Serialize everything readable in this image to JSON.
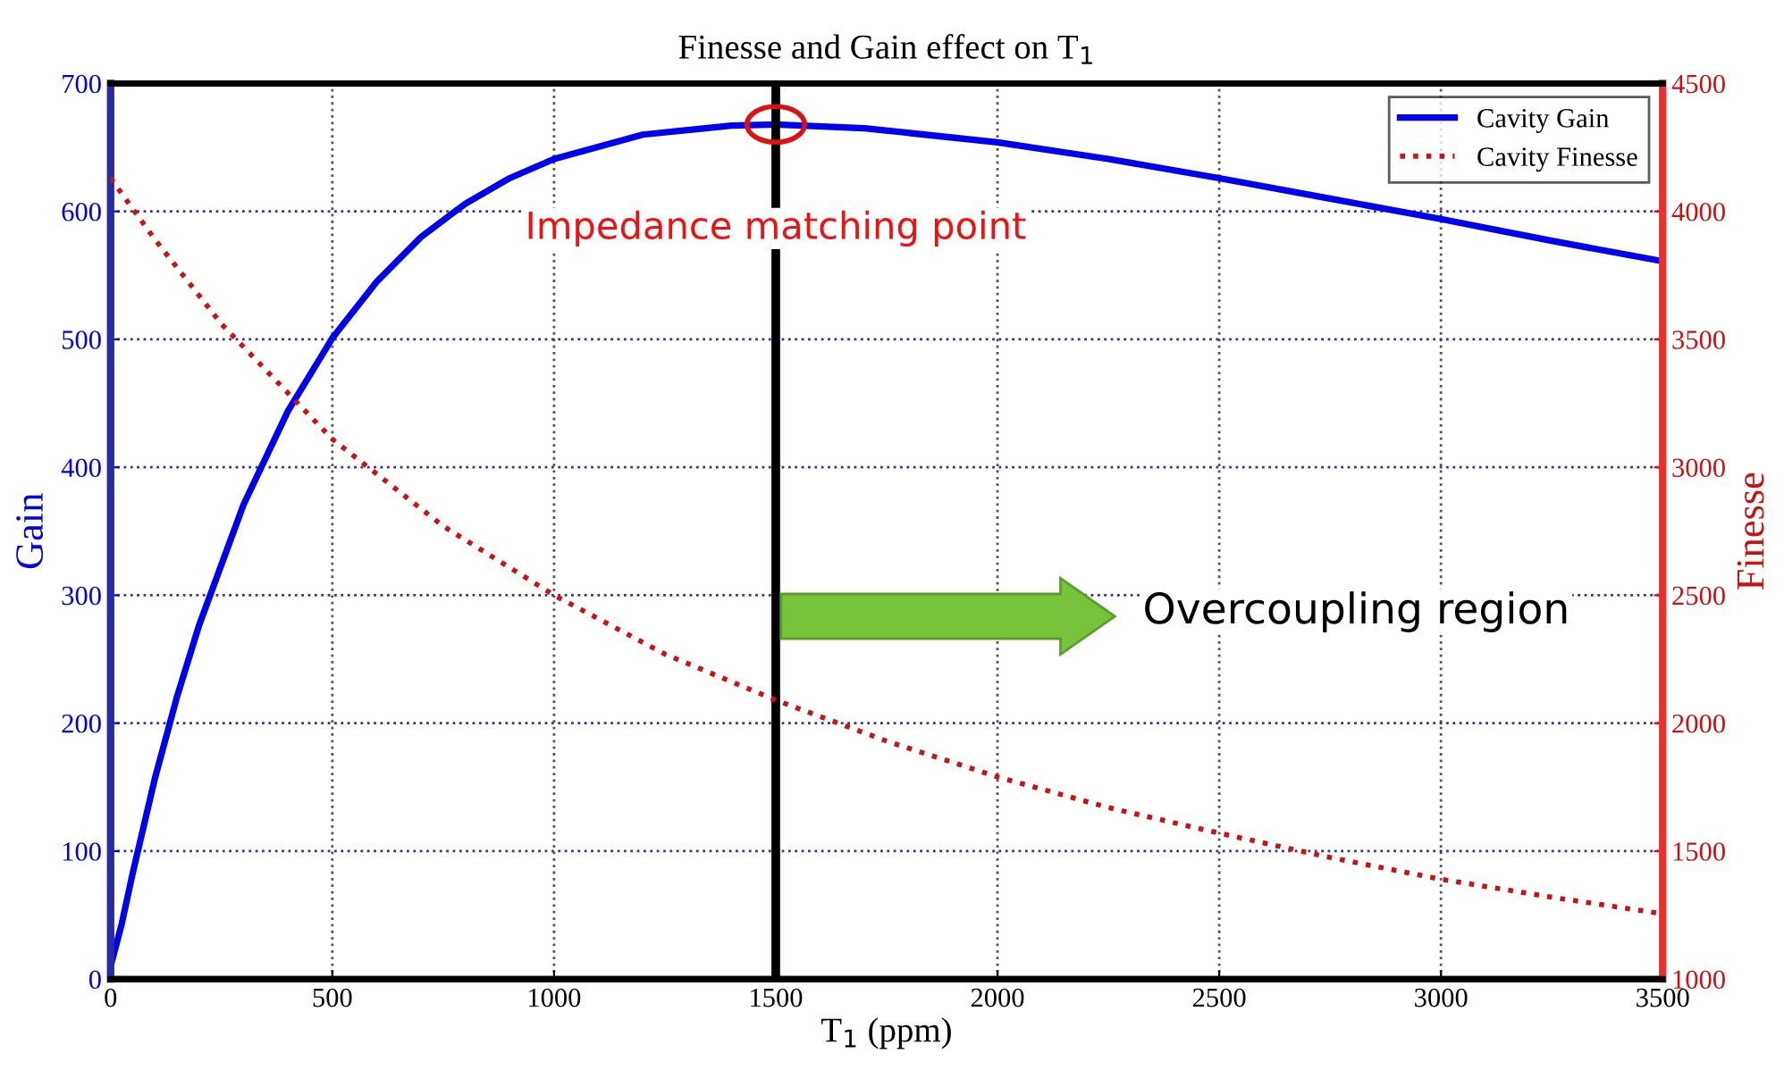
{
  "chart_data": {
    "type": "line",
    "title": "Finesse and Gain effect on T$_{1}$",
    "xlabel": "T$_{1}$ (ppm)",
    "ylabel": "Gain",
    "y2label": "Finesse",
    "xlim": [
      0,
      3500
    ],
    "xticks": [
      0,
      500,
      1000,
      1500,
      2000,
      2500,
      3000,
      3500
    ],
    "ylim": [
      0,
      700
    ],
    "yticks": [
      0,
      100,
      200,
      300,
      400,
      500,
      600,
      700
    ],
    "y2lim": [
      1000,
      4500
    ],
    "y2ticks": [
      1000,
      1500,
      2000,
      2500,
      3000,
      3500,
      4000,
      4500
    ],
    "grid": true,
    "legend": "top right",
    "series": [
      {
        "name": "Cavity Gain",
        "color": "#0000ee",
        "line_style": "solid",
        "x": [
          0,
          25,
          50,
          100,
          150,
          200,
          300,
          400,
          500,
          600,
          700,
          800,
          900,
          1000,
          1200,
          1400,
          1500,
          1700,
          2000,
          2250,
          2500,
          2750,
          3000,
          3250,
          3500
        ],
        "values": [
          10,
          43,
          83,
          157,
          221,
          277,
          371,
          444,
          501,
          545,
          580,
          606,
          626,
          641,
          660,
          667,
          668,
          665,
          654,
          641,
          626,
          610,
          594,
          577,
          561
        ]
      },
      {
        "name": "Cavity Finesse",
        "color": "#cc1111",
        "line_style": "dotted",
        "axis": "y2",
        "x": [
          0,
          100,
          250,
          500,
          750,
          1000,
          1250,
          1500,
          1750,
          2000,
          2250,
          2500,
          2750,
          3000,
          3250,
          3500
        ],
        "values": [
          4130,
          3890,
          3560,
          3110,
          2770,
          2500,
          2270,
          2090,
          1930,
          1790,
          1670,
          1570,
          1475,
          1390,
          1320,
          1255
        ]
      }
    ],
    "ref_lines": [
      {
        "axis": "x",
        "value": 1500,
        "color": "#000000",
        "line_style": "solid"
      }
    ],
    "annotations": [
      {
        "text": "Impedance matching point",
        "x": 1500,
        "y": 668
      },
      "Overcoupling region"
    ]
  }
}
